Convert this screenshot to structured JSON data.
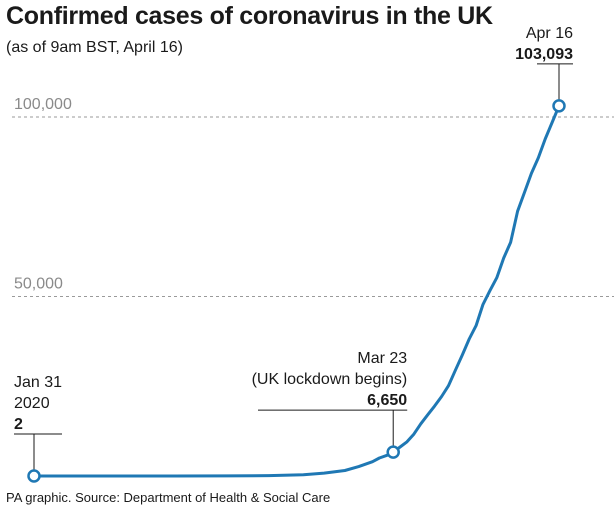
{
  "chart_data": {
    "type": "line",
    "title": "Confirmed cases of coronavirus in the UK",
    "subtitle": "(as of 9am BST, April 16)",
    "source": "PA graphic. Source: Department of Health & Social Care",
    "xlabel": "",
    "ylabel": "",
    "ylim": [
      0,
      110000
    ],
    "y_ticks": [
      {
        "value": 50000,
        "label": "50,000"
      },
      {
        "value": 100000,
        "label": "100,000"
      }
    ],
    "grid": "dashed horizontal at labelled ticks",
    "x_dates": [
      "2020-01-31",
      "2020-04-16"
    ],
    "series": [
      {
        "color": "#1f78b4",
        "points": [
          [
            "2020-01-31",
            2
          ],
          [
            "2020-02-10",
            8
          ],
          [
            "2020-02-20",
            9
          ],
          [
            "2020-02-28",
            20
          ],
          [
            "2020-03-05",
            115
          ],
          [
            "2020-03-10",
            373
          ],
          [
            "2020-03-13",
            798
          ],
          [
            "2020-03-16",
            1543
          ],
          [
            "2020-03-18",
            2626
          ],
          [
            "2020-03-20",
            3983
          ],
          [
            "2020-03-21",
            5018
          ],
          [
            "2020-03-22",
            5683
          ],
          [
            "2020-03-23",
            6650
          ],
          [
            "2020-03-24",
            8077
          ],
          [
            "2020-03-25",
            9529
          ],
          [
            "2020-03-26",
            11658
          ],
          [
            "2020-03-27",
            14543
          ],
          [
            "2020-03-28",
            17089
          ],
          [
            "2020-03-29",
            19522
          ],
          [
            "2020-03-30",
            22141
          ],
          [
            "2020-03-31",
            25150
          ],
          [
            "2020-04-01",
            29474
          ],
          [
            "2020-04-02",
            33718
          ],
          [
            "2020-04-03",
            38168
          ],
          [
            "2020-04-04",
            41903
          ],
          [
            "2020-04-05",
            47806
          ],
          [
            "2020-04-06",
            51608
          ],
          [
            "2020-04-07",
            55242
          ],
          [
            "2020-04-08",
            60733
          ],
          [
            "2020-04-09",
            65077
          ],
          [
            "2020-04-10",
            73758
          ],
          [
            "2020-04-11",
            78991
          ],
          [
            "2020-04-12",
            84279
          ],
          [
            "2020-04-13",
            88621
          ],
          [
            "2020-04-14",
            93873
          ],
          [
            "2020-04-15",
            98476
          ],
          [
            "2020-04-16",
            103093
          ]
        ]
      }
    ],
    "annotations": [
      {
        "date": "2020-01-31",
        "value": 2,
        "lines": [
          "Jan 31",
          "2020"
        ],
        "value_label": "2",
        "align": "left"
      },
      {
        "date": "2020-03-23",
        "value": 6650,
        "lines": [
          "Mar 23",
          "(UK lockdown begins)"
        ],
        "value_label": "6,650",
        "align": "right"
      },
      {
        "date": "2020-04-16",
        "value": 103093,
        "lines": [
          "Apr 16"
        ],
        "value_label": "103,093",
        "align": "right"
      }
    ]
  }
}
